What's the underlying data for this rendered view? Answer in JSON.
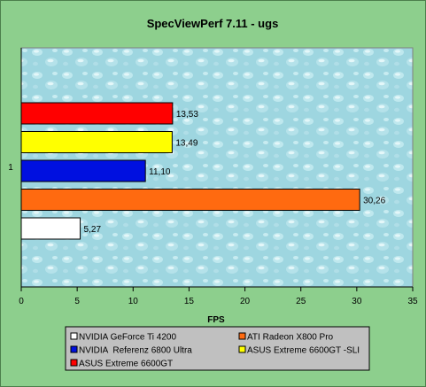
{
  "chart_data": {
    "type": "bar",
    "orientation": "horizontal",
    "title": "SpecViewPerf 7.11 - ugs",
    "xlabel": "FPS",
    "ylabel": "",
    "category_label": "1",
    "xlim": [
      0,
      35
    ],
    "x_ticks": [
      0,
      5,
      10,
      15,
      20,
      25,
      30,
      35
    ],
    "grid": false,
    "legend_position": "bottom",
    "series": [
      {
        "name": "NVIDIA GeForce Ti 4200",
        "value": 5.27,
        "label": "5,27",
        "color": "#ffffff"
      },
      {
        "name": "ATI Radeon X800 Pro",
        "value": 30.26,
        "label": "30,26",
        "color": "#ff6a10"
      },
      {
        "name": "NVIDIA  Referenz 6800 Ultra",
        "value": 11.1,
        "label": "11,10",
        "color": "#0010e0"
      },
      {
        "name": "ASUS Extreme 6600GT -SLI",
        "value": 13.49,
        "label": "13,49",
        "color": "#ffff00"
      },
      {
        "name": "ASUS Extreme 6600GT",
        "value": 13.53,
        "label": "13,53",
        "color": "#ff0000"
      }
    ]
  },
  "colors": {
    "frame_background": "#8dcf8d",
    "plot_background": "#9ed6e0",
    "legend_background": "#c0c0c0"
  }
}
